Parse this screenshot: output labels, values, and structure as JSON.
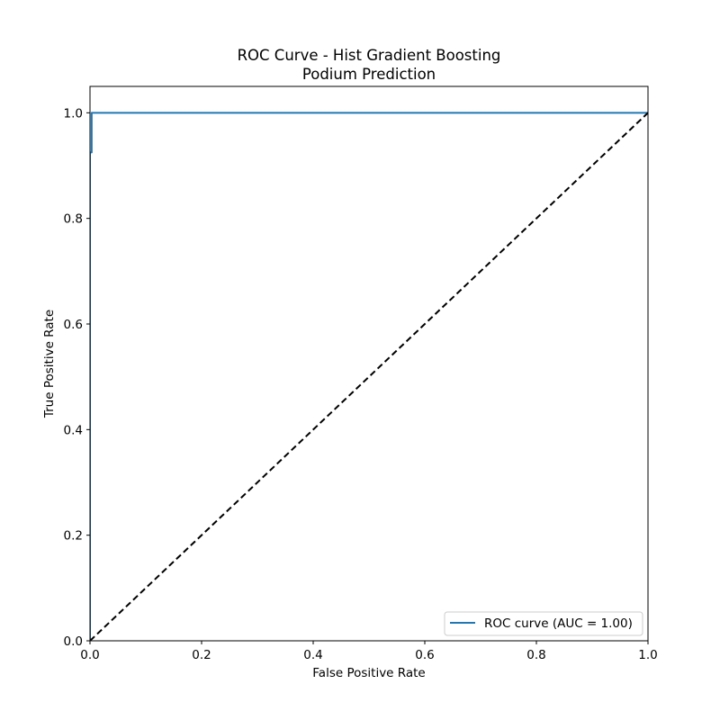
{
  "chart_data": {
    "type": "line",
    "title_line1": "ROC Curve - Hist Gradient Boosting",
    "title_line2": "Podium Prediction",
    "xlabel": "False Positive Rate",
    "ylabel": "True Positive Rate",
    "xlim": [
      0.0,
      1.0
    ],
    "ylim": [
      0.0,
      1.05
    ],
    "x_ticks": [
      0.0,
      0.2,
      0.4,
      0.6,
      0.8,
      1.0
    ],
    "x_tick_labels": [
      "0.0",
      "0.2",
      "0.4",
      "0.6",
      "0.8",
      "1.0"
    ],
    "y_ticks": [
      0.0,
      0.2,
      0.4,
      0.6,
      0.8,
      1.0
    ],
    "y_tick_labels": [
      "0.0",
      "0.2",
      "0.4",
      "0.6",
      "0.8",
      "1.0"
    ],
    "grid": false,
    "legend_position": "lower-right",
    "series": [
      {
        "name": "ROC curve (AUC = 1.00)",
        "color": "#1f77b4",
        "style": "solid",
        "x": [
          0.0,
          0.0,
          0.003,
          0.003,
          0.003,
          1.0
        ],
        "y": [
          0.0,
          0.925,
          0.925,
          0.998,
          1.0,
          1.0
        ]
      },
      {
        "color": "#000000",
        "style": "dashed",
        "x": [
          0.0,
          1.0
        ],
        "y": [
          0.0,
          1.0
        ]
      }
    ]
  }
}
